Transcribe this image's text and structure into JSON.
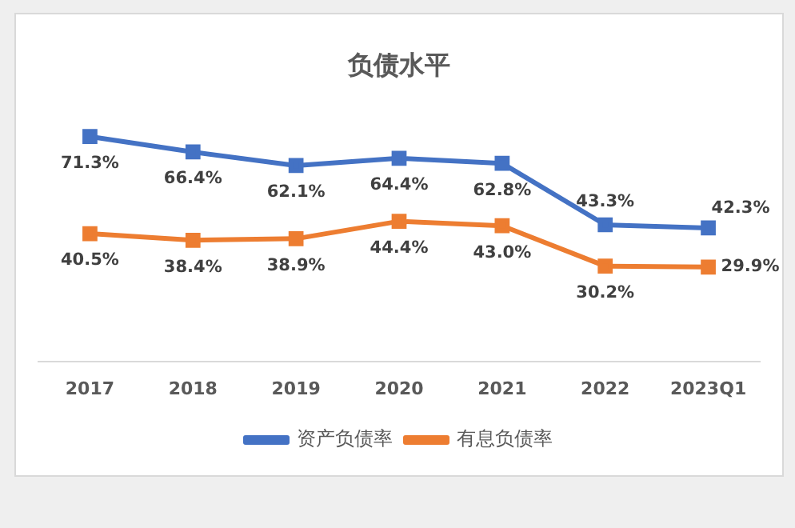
{
  "chart_data": {
    "type": "line",
    "title": "负债水平",
    "categories": [
      "2017",
      "2018",
      "2019",
      "2020",
      "2021",
      "2022",
      "2023Q1"
    ],
    "series": [
      {
        "name": "资产负债率",
        "color": "#4472c4",
        "values": [
          71.3,
          66.4,
          62.1,
          64.4,
          62.8,
          43.3,
          42.3
        ],
        "value_labels": [
          "71.3%",
          "66.4%",
          "62.1%",
          "64.4%",
          "62.8%",
          "43.3%",
          "42.3%"
        ]
      },
      {
        "name": "有息负债率",
        "color": "#ed7d31",
        "values": [
          40.5,
          38.4,
          38.9,
          44.4,
          43.0,
          30.2,
          29.9
        ],
        "value_labels": [
          "40.5%",
          "38.4%",
          "38.9%",
          "44.4%",
          "43.0%",
          "30.2%",
          "29.9%"
        ]
      }
    ],
    "marker": "square",
    "legend": "bottom",
    "tick_labels": "x"
  }
}
